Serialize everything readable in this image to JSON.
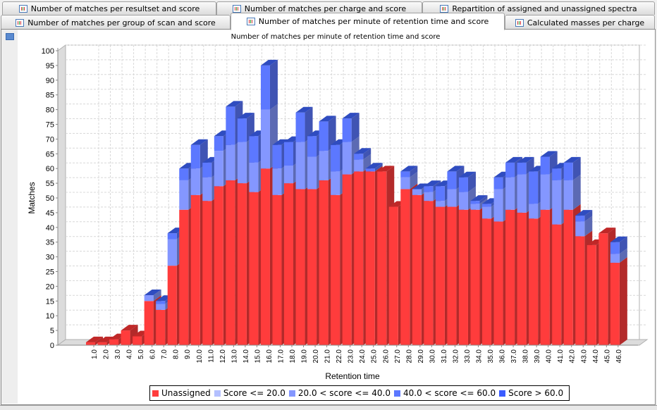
{
  "tabs": {
    "row1": [
      {
        "label": "Number of matches per resultset and score"
      },
      {
        "label": "Number of matches per charge and score"
      },
      {
        "label": "Repartition of assigned and unassigned spectra"
      }
    ],
    "row2": [
      {
        "label": "Number of matches per group of scan and score"
      },
      {
        "label": "Number of matches per minute of retention time and score",
        "selected": true
      },
      {
        "label": "Calculated masses per charge"
      }
    ]
  },
  "chart_data": {
    "type": "bar",
    "stacked": true,
    "three_d": true,
    "title": "Number of matches per minute of retention time and score",
    "xlabel": "Retention time",
    "ylabel": "Matches",
    "ylim": [
      0,
      100
    ],
    "yticks": [
      0,
      5,
      10,
      15,
      20,
      25,
      30,
      35,
      40,
      45,
      50,
      55,
      60,
      65,
      70,
      75,
      80,
      85,
      90,
      95,
      100
    ],
    "grid": true,
    "legend_position": "bottom",
    "categories": [
      "1.0",
      "2.0",
      "3.0",
      "4.0",
      "5.0",
      "6.0",
      "7.0",
      "8.0",
      "9.0",
      "10.0",
      "11.0",
      "12.0",
      "13.0",
      "14.0",
      "15.0",
      "16.0",
      "17.0",
      "18.0",
      "19.0",
      "20.0",
      "21.0",
      "22.0",
      "23.0",
      "24.0",
      "25.0",
      "26.0",
      "27.0",
      "28.0",
      "29.0",
      "30.0",
      "31.0",
      "32.0",
      "33.0",
      "34.0",
      "35.0",
      "36.0",
      "37.0",
      "38.0",
      "39.0",
      "40.0",
      "41.0",
      "42.0",
      "43.0",
      "44.0",
      "45.0",
      "46.0"
    ],
    "series": [
      {
        "name": "Unassigned",
        "color": "#ff3c3c",
        "values": [
          1,
          1,
          2,
          5,
          3,
          15,
          12,
          27,
          46,
          51,
          49,
          54,
          56,
          55,
          52,
          60,
          51,
          55,
          53,
          53,
          56,
          51,
          58,
          59,
          59,
          59,
          47,
          53,
          51,
          49,
          47,
          47,
          46,
          46,
          43,
          42,
          46,
          45,
          43,
          46,
          41,
          46,
          37,
          34,
          38,
          28
        ]
      },
      {
        "name": "Score <= 20.0",
        "color": "#b4c0ff",
        "values": [
          0,
          0,
          0,
          0,
          0,
          0,
          0,
          0,
          0,
          0,
          0,
          0,
          0,
          0,
          0,
          0,
          0,
          0,
          0,
          0,
          0,
          0,
          0,
          0,
          0,
          0,
          0,
          0,
          0,
          0,
          0,
          0,
          0,
          0,
          0,
          0,
          0,
          0,
          0,
          0,
          0,
          0,
          0,
          0,
          0,
          0
        ]
      },
      {
        "name": "20.0 < score <= 40.0",
        "color": "#8497ff",
        "values": [
          0,
          0,
          0,
          0,
          0,
          2,
          2,
          9,
          10,
          9,
          8,
          12,
          12,
          14,
          10,
          20,
          9,
          6,
          16,
          11,
          10,
          8,
          11,
          4,
          0,
          0,
          0,
          4,
          2,
          3,
          2,
          6,
          6,
          2,
          4,
          11,
          11,
          13,
          5,
          12,
          15,
          10,
          5,
          0,
          0,
          3
        ]
      },
      {
        "name": "40.0 < score <= 60.0",
        "color": "#5c78ff",
        "values": [
          0,
          0,
          0,
          0,
          0,
          0,
          1,
          2,
          4,
          8,
          5,
          5,
          13,
          8,
          9,
          15,
          8,
          8,
          10,
          7,
          10,
          9,
          8,
          2,
          1,
          0,
          0,
          2,
          0,
          2,
          5,
          6,
          5,
          1,
          1,
          4,
          5,
          4,
          11,
          6,
          4,
          6,
          2,
          0,
          0,
          4
        ]
      },
      {
        "name": "Score > 60.0",
        "color": "#3a5cff",
        "values": [
          0,
          0,
          0,
          0,
          0,
          0,
          0,
          0,
          0,
          0,
          0,
          0,
          0,
          0,
          0,
          0,
          0,
          0,
          0,
          0,
          0,
          0,
          0,
          0,
          0,
          0,
          0,
          0,
          0,
          0,
          0,
          0,
          0,
          0,
          0,
          0,
          0,
          0,
          0,
          0,
          0,
          0,
          0,
          0,
          0,
          0
        ]
      }
    ]
  }
}
